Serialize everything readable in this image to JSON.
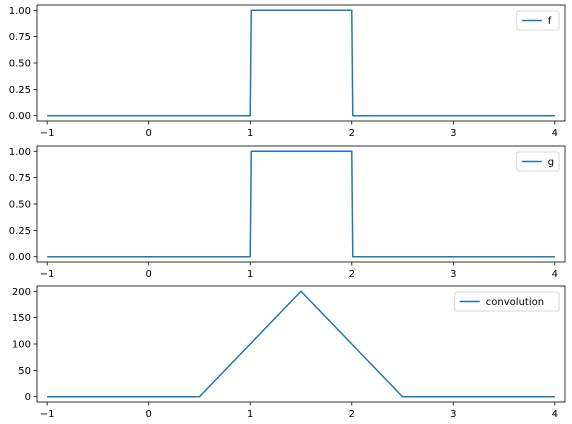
{
  "chart_data": [
    {
      "type": "line",
      "title": "",
      "xlabel": "",
      "ylabel": "",
      "xlim": [
        -1.1,
        4.1
      ],
      "ylim": [
        -0.05,
        1.05
      ],
      "xticks": [
        -1,
        0,
        1,
        2,
        3,
        4
      ],
      "yticks": [
        0.0,
        0.25,
        0.5,
        0.75,
        1.0
      ],
      "ytick_labels": [
        "0.00",
        "0.25",
        "0.50",
        "0.75",
        "1.00"
      ],
      "legend_position": "top-right",
      "grid": false,
      "series": [
        {
          "name": "f",
          "color": "#1f77b4",
          "x": [
            -1,
            1,
            1.01,
            2,
            2.01,
            4
          ],
          "y": [
            0,
            0,
            1,
            1,
            0,
            0
          ]
        }
      ]
    },
    {
      "type": "line",
      "title": "",
      "xlabel": "",
      "ylabel": "",
      "xlim": [
        -1.1,
        4.1
      ],
      "ylim": [
        -0.05,
        1.05
      ],
      "xticks": [
        -1,
        0,
        1,
        2,
        3,
        4
      ],
      "yticks": [
        0.0,
        0.25,
        0.5,
        0.75,
        1.0
      ],
      "ytick_labels": [
        "0.00",
        "0.25",
        "0.50",
        "0.75",
        "1.00"
      ],
      "legend_position": "top-right",
      "grid": false,
      "series": [
        {
          "name": "g",
          "color": "#1f77b4",
          "x": [
            -1,
            1,
            1.01,
            2,
            2.01,
            4
          ],
          "y": [
            0,
            0,
            1,
            1,
            0,
            0
          ]
        }
      ]
    },
    {
      "type": "line",
      "title": "",
      "xlabel": "",
      "ylabel": "",
      "xlim": [
        -1.1,
        4.1
      ],
      "ylim": [
        -10,
        210
      ],
      "xticks": [
        -1,
        0,
        1,
        2,
        3,
        4
      ],
      "yticks": [
        0,
        50,
        100,
        150,
        200
      ],
      "ytick_labels": [
        "0",
        "50",
        "100",
        "150",
        "200"
      ],
      "legend_position": "top-right",
      "grid": false,
      "series": [
        {
          "name": "convolution",
          "color": "#1f77b4",
          "x": [
            -1,
            0.5,
            1.5,
            2.5,
            4
          ],
          "y": [
            0,
            0,
            200,
            0,
            0
          ]
        }
      ]
    }
  ]
}
